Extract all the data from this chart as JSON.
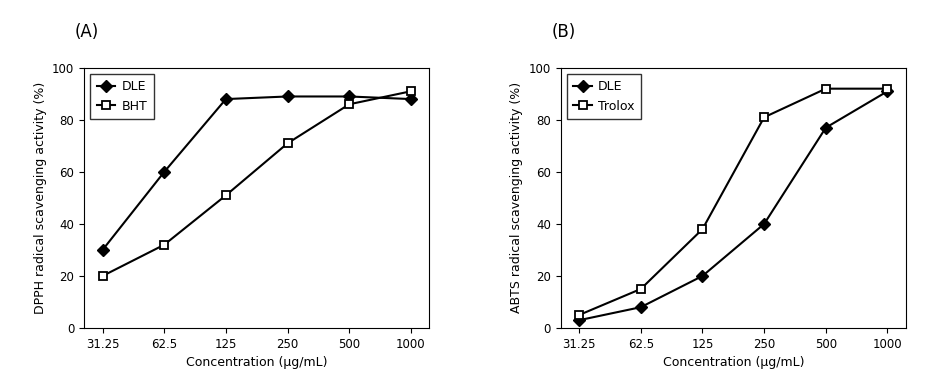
{
  "x_labels": [
    "31.25",
    "62.5",
    "125",
    "250",
    "500",
    "1000"
  ],
  "x_values": [
    0,
    1,
    2,
    3,
    4,
    5
  ],
  "panel_A": {
    "panel_label": "(A)",
    "ylabel": "DPPH radical scavenging activity (%)",
    "xlabel": "Concentration (μg/mL)",
    "DLE": [
      30,
      60,
      88,
      89,
      89,
      88
    ],
    "BHT": [
      20,
      32,
      51,
      71,
      86,
      91
    ],
    "DLE_label": "DLE",
    "BHT_label": "BHT",
    "ylim": [
      0,
      100
    ],
    "yticks": [
      0,
      20,
      40,
      60,
      80,
      100
    ]
  },
  "panel_B": {
    "panel_label": "(B)",
    "ylabel": "ABTS radical scavenging activity (%)",
    "xlabel": "Concentration (μg/mL)",
    "DLE": [
      3,
      8,
      20,
      40,
      77,
      91
    ],
    "Trolox": [
      5,
      15,
      38,
      81,
      92,
      92
    ],
    "DLE_label": "DLE",
    "Trolox_label": "Trolox",
    "ylim": [
      0,
      100
    ],
    "yticks": [
      0,
      20,
      40,
      60,
      80,
      100
    ]
  },
  "line_color": "#000000",
  "marker_size": 6,
  "linewidth": 1.5,
  "legend_fontsize": 9,
  "axis_fontsize": 9,
  "tick_fontsize": 8.5,
  "panel_label_fontsize": 12
}
